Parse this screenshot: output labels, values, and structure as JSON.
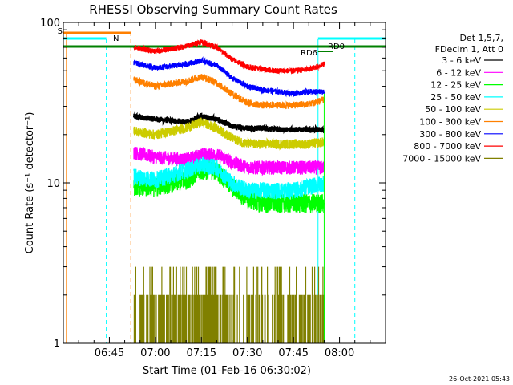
{
  "chart_data": {
    "type": "line",
    "title": "RHESSI Observing Summary Count Rates",
    "xlabel": "Start Time (01-Feb-16 06:30:02)",
    "ylabel": "Count Rate (s⁻¹ detector⁻¹)",
    "y_scale": "log",
    "ylim": [
      1,
      100
    ],
    "xlim_minutes_after_0630": [
      0,
      105
    ],
    "x_tick_labels": [
      "06:45",
      "07:00",
      "07:15",
      "07:30",
      "07:45",
      "08:00"
    ],
    "x_tick_minutes": [
      15,
      30,
      45,
      60,
      75,
      90
    ],
    "y_tick_labels": [
      "1",
      "10",
      "100"
    ],
    "y_tick_values": [
      1,
      10,
      100
    ],
    "data_start_minute": 23,
    "data_end_minute": 85,
    "legend_header": [
      "Det 1,5,7,",
      "FDecim 1, Att 0"
    ],
    "legend_position": "right",
    "series": [
      {
        "name": "3 - 6 keV",
        "color": "#000000",
        "x": [
          23,
          30,
          40,
          45,
          50,
          55,
          60,
          65,
          70,
          75,
          80,
          85
        ],
        "y": [
          26,
          25,
          24,
          26,
          25,
          22.5,
          22,
          22,
          21.5,
          21.5,
          21.5,
          21.5
        ]
      },
      {
        "name": "6 - 12 keV",
        "color": "#ff00ff",
        "x": [
          23,
          30,
          40,
          45,
          50,
          55,
          60,
          65,
          70,
          75,
          80,
          85
        ],
        "y": [
          15.5,
          14.5,
          14,
          15,
          15,
          13.5,
          12.5,
          12.5,
          12.5,
          12.5,
          12.5,
          12.5
        ]
      },
      {
        "name": "12 - 25 keV",
        "color": "#00ff00",
        "x": [
          23,
          30,
          40,
          45,
          50,
          55,
          60,
          65,
          70,
          75,
          80,
          85
        ],
        "y": [
          9.5,
          9.5,
          10.5,
          12,
          12,
          9.5,
          8,
          7.5,
          7.5,
          7.5,
          7.5,
          7.5
        ]
      },
      {
        "name": "25 - 50 keV",
        "color": "#00ffff",
        "x": [
          23,
          30,
          40,
          45,
          50,
          55,
          60,
          65,
          70,
          75,
          80,
          85
        ],
        "y": [
          11,
          10.5,
          12,
          13,
          12.5,
          10,
          9,
          9,
          9,
          9,
          9.5,
          10
        ]
      },
      {
        "name": "50 - 100 keV",
        "color": "#cccc00",
        "x": [
          23,
          30,
          40,
          45,
          50,
          55,
          60,
          65,
          70,
          75,
          80,
          85
        ],
        "y": [
          21,
          20,
          22,
          24,
          22,
          19,
          17.5,
          17.5,
          17.5,
          17.5,
          17.5,
          18
        ]
      },
      {
        "name": "100 - 300 keV",
        "color": "#ff8000",
        "x": [
          23,
          30,
          40,
          45,
          50,
          55,
          60,
          65,
          70,
          75,
          80,
          85
        ],
        "y": [
          44,
          40,
          43,
          46,
          42,
          36,
          31.5,
          30.5,
          30.5,
          30.5,
          31,
          33
        ]
      },
      {
        "name": "300 - 800 keV",
        "color": "#0000ff",
        "x": [
          23,
          30,
          40,
          45,
          50,
          55,
          60,
          65,
          70,
          75,
          80,
          85
        ],
        "y": [
          56,
          52,
          55,
          58,
          54,
          45,
          40,
          38,
          37,
          36,
          37,
          37
        ]
      },
      {
        "name": "800 - 7000 keV",
        "color": "#ff0000",
        "x": [
          23,
          30,
          40,
          45,
          50,
          55,
          60,
          65,
          70,
          75,
          80,
          85
        ],
        "y": [
          70,
          66,
          71,
          76,
          70,
          59,
          53,
          51,
          50,
          50,
          51,
          55
        ]
      },
      {
        "name": "7000 - 15000 keV",
        "color": "#808000",
        "x": [
          23,
          30,
          40,
          45,
          50,
          55,
          60,
          65,
          70,
          75,
          80,
          85
        ],
        "y": [
          1.6,
          1.6,
          2,
          2.2,
          2,
          1.6,
          1.4,
          1.4,
          1.6,
          1.8,
          2,
          2.2
        ]
      }
    ],
    "annotations": [
      {
        "text": "S",
        "color": "#ff8000"
      },
      {
        "text": "N",
        "color": "#00ffff"
      },
      {
        "text": "RD6",
        "color": "#008000"
      },
      {
        "text": "RD0",
        "color": "#008000"
      }
    ],
    "timestamp": "26-Oct-2021 05:43"
  }
}
